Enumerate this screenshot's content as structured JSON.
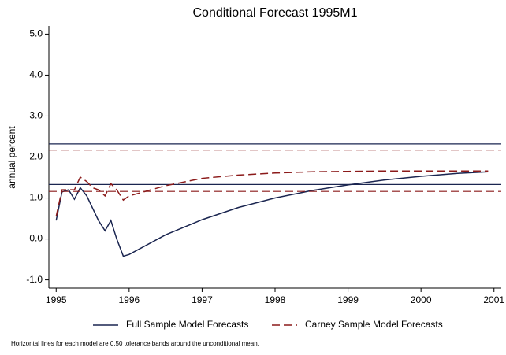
{
  "chart_data": {
    "type": "line",
    "title": "Conditional Forecast 1995M1",
    "y_label": "annual percent",
    "note": "Horizontal lines for each model are 0.50 tolerance bands around the unconditional mean.",
    "xlim": [
      1994.9,
      2001.1
    ],
    "xticks": [
      1995,
      1996,
      1997,
      1998,
      1999,
      2000,
      2001
    ],
    "ylim": [
      -1.2,
      5.2
    ],
    "yticks": [
      {
        "value": -1,
        "label": "-1.0"
      },
      {
        "value": 0,
        "label": "0.0"
      },
      {
        "value": 1,
        "label": "1.0"
      },
      {
        "value": 2,
        "label": "2.0"
      },
      {
        "value": 3,
        "label": "3.0"
      },
      {
        "value": 4,
        "label": "4.0"
      },
      {
        "value": 5,
        "label": "5.0"
      }
    ],
    "grid": false,
    "legend": "bottom",
    "series": [
      {
        "name": "Full Sample Model Forecasts",
        "color": "#1a2550",
        "dash": false,
        "x": [
          1995.0,
          1995.08,
          1995.17,
          1995.25,
          1995.33,
          1995.42,
          1995.5,
          1995.58,
          1995.67,
          1995.75,
          1995.83,
          1995.92,
          1996.0,
          1996.5,
          1997.0,
          1997.5,
          1998.0,
          1998.5,
          1999.0,
          1999.5,
          2000.0,
          2000.5,
          2000.92
        ],
        "values": [
          0.45,
          1.15,
          1.2,
          0.97,
          1.25,
          1.05,
          0.75,
          0.45,
          0.2,
          0.45,
          0.0,
          -0.42,
          -0.38,
          0.1,
          0.47,
          0.77,
          1.0,
          1.18,
          1.32,
          1.44,
          1.53,
          1.6,
          1.64
        ],
        "bands": [
          2.32,
          1.33
        ]
      },
      {
        "name": "Carney Sample Model Forecasts",
        "color": "#8b1a1a",
        "dash": true,
        "x": [
          1995.0,
          1995.08,
          1995.17,
          1995.25,
          1995.33,
          1995.42,
          1995.5,
          1995.58,
          1995.67,
          1995.75,
          1995.83,
          1995.92,
          1996.0,
          1996.5,
          1997.0,
          1997.5,
          1998.0,
          1998.5,
          1999.0,
          1999.5,
          2000.0,
          2000.5,
          2000.92
        ],
        "values": [
          0.55,
          1.2,
          1.2,
          1.2,
          1.51,
          1.4,
          1.25,
          1.2,
          1.05,
          1.35,
          1.2,
          0.95,
          1.05,
          1.3,
          1.48,
          1.56,
          1.61,
          1.64,
          1.65,
          1.66,
          1.66,
          1.66,
          1.66
        ],
        "bands": [
          2.17,
          1.16
        ]
      }
    ]
  }
}
